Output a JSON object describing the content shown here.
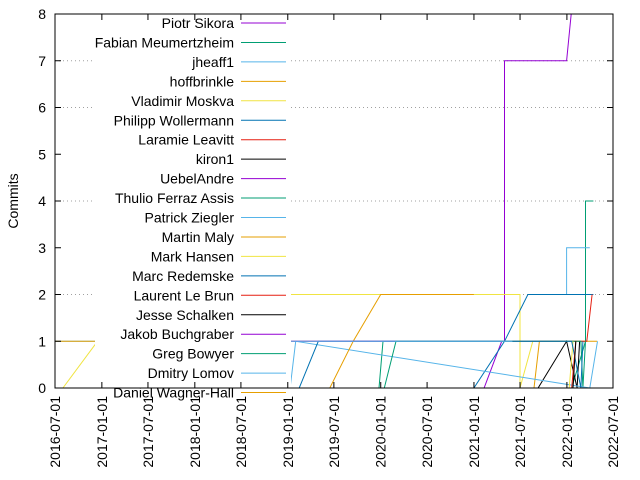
{
  "chart_data": {
    "type": "line",
    "title": "",
    "xlabel": "",
    "ylabel": "Commits",
    "x_axis_type": "date",
    "xlim": [
      "2016-07-01",
      "2022-07-01"
    ],
    "ylim": [
      0,
      8
    ],
    "x_ticks": [
      "2016-07-01",
      "2017-01-01",
      "2017-07-01",
      "2018-01-01",
      "2018-07-01",
      "2019-01-01",
      "2019-07-01",
      "2020-01-01",
      "2020-07-01",
      "2021-07-01",
      "2022-01-01",
      "2022-07-01",
      "2021-01-01"
    ],
    "y_ticks": [
      0,
      1,
      2,
      3,
      4,
      5,
      6,
      7,
      8
    ],
    "grid": "horizontal dotted at y=2,4,6,7,8 (partially hidden under legend)",
    "legend_position": "top-left",
    "series": [
      {
        "name": "Piotr Sikora",
        "color": "#9400d3",
        "points": [
          [
            "2021-02-10",
            0
          ],
          [
            "2021-04-20",
            1
          ],
          [
            "2021-05-01",
            1
          ],
          [
            "2021-05-01",
            7
          ],
          [
            "2021-12-31",
            7
          ],
          [
            "2022-01-18",
            8
          ],
          [
            "2022-07-01",
            8
          ]
        ]
      },
      {
        "name": "Fabian Meumertzheim",
        "color": "#009e73",
        "points": [
          [
            "2022-01-20",
            0
          ],
          [
            "2022-03-15",
            1
          ],
          [
            "2022-03-15",
            4
          ],
          [
            "2022-04-15",
            4
          ]
        ]
      },
      {
        "name": "jheaff1",
        "color": "#56b4e9",
        "points": [
          [
            "2021-09-01",
            2
          ],
          [
            "2021-12-31",
            2
          ],
          [
            "2021-12-31",
            3
          ],
          [
            "2022-04-01",
            3
          ]
        ]
      },
      {
        "name": "hoffbrinkle",
        "color": "#e69f00",
        "points": [
          [
            "2021-08-25",
            0
          ],
          [
            "2021-09-15",
            1
          ],
          [
            "2022-04-30",
            1
          ]
        ]
      },
      {
        "name": "Vladimir Moskva",
        "color": "#f0e442",
        "points": [
          [
            "2016-08-01",
            0
          ],
          [
            "2016-12-15",
            1
          ],
          [
            "2017-05-15",
            2
          ],
          [
            "2021-07-01",
            2
          ],
          [
            "2021-07-01",
            0
          ],
          [
            "2021-08-20",
            1
          ]
        ]
      },
      {
        "name": "Philipp Wollermann",
        "color": "#0072b2",
        "points": [
          [
            "2021-01-01",
            0
          ],
          [
            "2021-05-01",
            1
          ],
          [
            "2021-08-01",
            2
          ],
          [
            "2022-04-15",
            2
          ]
        ]
      },
      {
        "name": "Laramie Leavitt",
        "color": "#e51e10",
        "points": [
          [
            "2018-03-01",
            0
          ],
          [
            "2018-12-31",
            1
          ],
          [
            "2022-03-20",
            1
          ],
          [
            "2022-04-10",
            2
          ]
        ]
      },
      {
        "name": "kiron1",
        "color": "#000000",
        "points": [
          [
            "2021-09-10",
            0
          ],
          [
            "2021-12-31",
            1
          ],
          [
            "2022-02-10",
            0
          ],
          [
            "2022-02-20",
            1
          ]
        ]
      },
      {
        "name": "UebelAndre",
        "color": "#9400d3",
        "points": [
          [
            "2017-08-01",
            0
          ],
          [
            "2018-01-01",
            1
          ],
          [
            "2019-01-01",
            1
          ]
        ]
      },
      {
        "name": "Thulio Ferraz Assis",
        "color": "#009e73",
        "points": [
          [
            "2019-12-25",
            0
          ],
          [
            "2020-01-10",
            1
          ],
          [
            "2022-02-25",
            1
          ],
          [
            "2022-03-05",
            0
          ],
          [
            "2022-03-15",
            1
          ]
        ]
      },
      {
        "name": "Patrick Ziegler",
        "color": "#56b4e9",
        "points": [
          [
            "2019-01-10",
            0
          ],
          [
            "2019-02-01",
            1
          ],
          [
            "2022-04-01",
            0
          ],
          [
            "2022-05-01",
            1
          ]
        ]
      },
      {
        "name": "Martin Maly",
        "color": "#e69f00",
        "points": [
          [
            "2019-06-15",
            0
          ],
          [
            "2019-09-15",
            1
          ],
          [
            "2020-01-01",
            2
          ],
          [
            "2021-01-01",
            2
          ]
        ]
      },
      {
        "name": "Mark Hansen",
        "color": "#f0e442",
        "points": [
          [
            "2022-01-10",
            0
          ],
          [
            "2022-01-25",
            1
          ]
        ]
      },
      {
        "name": "Marc Redemske",
        "color": "#0072b2",
        "points": [
          [
            "2019-02-15",
            0
          ],
          [
            "2019-05-01",
            1
          ],
          [
            "2022-01-20",
            1
          ],
          [
            "2022-02-25",
            0
          ],
          [
            "2022-03-05",
            1
          ]
        ]
      },
      {
        "name": "Laurent Le Brun",
        "color": "#e51e10",
        "points": [
          [
            "2022-01-20",
            0
          ],
          [
            "2022-02-05",
            1
          ]
        ]
      },
      {
        "name": "Jesse Schalken",
        "color": "#000000",
        "points": [
          [
            "2022-01-25",
            0
          ],
          [
            "2022-02-05",
            1
          ]
        ]
      },
      {
        "name": "Jakob Buchgraber",
        "color": "#9400d3",
        "points": [
          [
            "2019-01-01",
            1
          ],
          [
            "2021-05-01",
            1
          ]
        ]
      },
      {
        "name": "Greg Bowyer",
        "color": "#009e73",
        "points": [
          [
            "2020-01-15",
            0
          ],
          [
            "2020-03-01",
            1
          ],
          [
            "2021-05-01",
            1
          ]
        ]
      },
      {
        "name": "Dmitry Lomov",
        "color": "#56b4e9",
        "points": [
          [
            "2016-07-01",
            1
          ],
          [
            "2018-06-01",
            1
          ],
          [
            "2019-01-01",
            1
          ],
          [
            "2021-06-01",
            1
          ]
        ]
      },
      {
        "name": "Daniel Wagner-Hall",
        "color": "#e69f00",
        "points": [
          [
            "2016-07-01",
            1
          ],
          [
            "2019-01-01",
            1
          ]
        ]
      }
    ]
  }
}
